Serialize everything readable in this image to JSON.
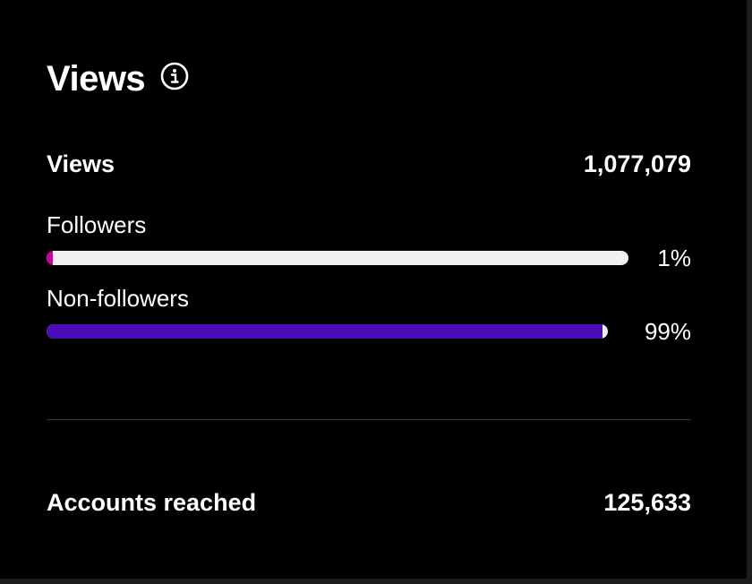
{
  "header": {
    "title": "Views",
    "info_icon": "info-circle-icon"
  },
  "summary": {
    "label": "Views",
    "value": "1,077,079"
  },
  "breakdown": [
    {
      "label": "Followers",
      "percent_label": "1%",
      "fraction": 0.01,
      "color": "#c800a8"
    },
    {
      "label": "Non-followers",
      "percent_label": "99%",
      "fraction": 0.99,
      "color": "#4a0bb8"
    }
  ],
  "accounts": {
    "label": "Accounts reached",
    "value": "125,633"
  },
  "colors": {
    "background": "#000000",
    "track": "#f0f0f0",
    "divider": "#3a3a3c"
  }
}
